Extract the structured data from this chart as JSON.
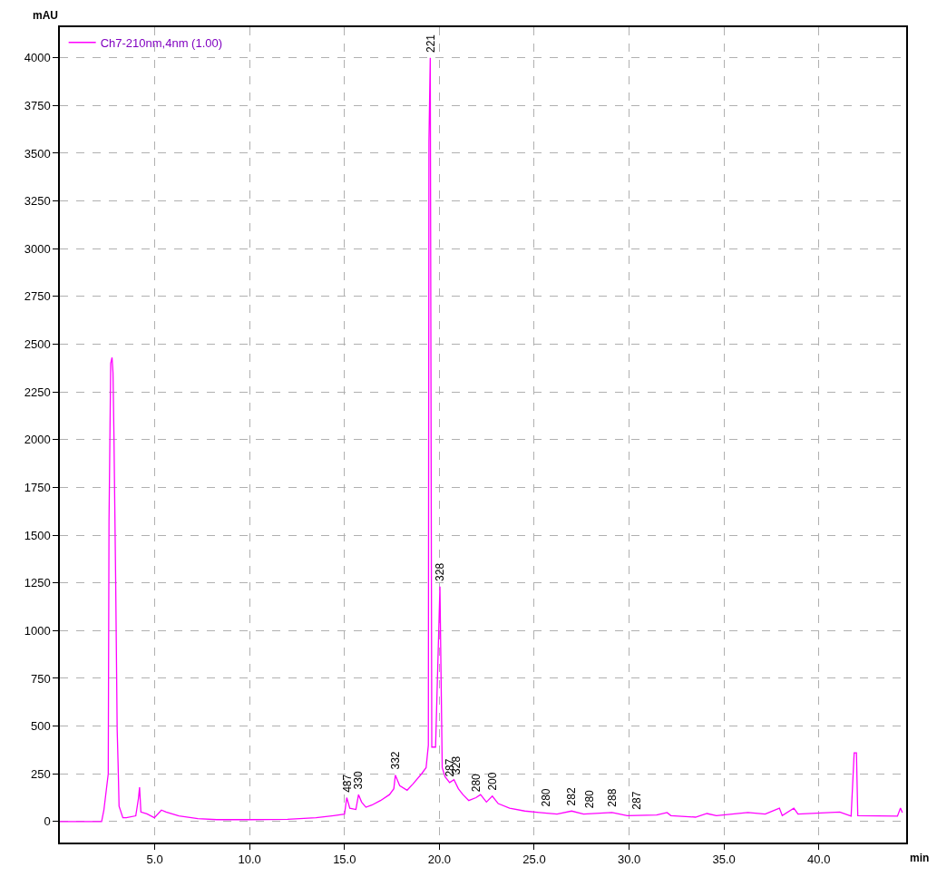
{
  "chart_data": {
    "type": "line",
    "xlabel": "min",
    "ylabel": "mAU",
    "legend": "top left",
    "grid": true,
    "marker": "none",
    "line_style": "solid",
    "xlim": [
      0,
      44.6
    ],
    "ylim": [
      -110,
      4160
    ],
    "xticks": [
      {
        "value": 5,
        "label": "5.0"
      },
      {
        "value": 10,
        "label": "10.0"
      },
      {
        "value": 15,
        "label": "15.0"
      },
      {
        "value": 20,
        "label": "20.0"
      },
      {
        "value": 25,
        "label": "25.0"
      },
      {
        "value": 30,
        "label": "30.0"
      },
      {
        "value": 35,
        "label": "35.0"
      },
      {
        "value": 40,
        "label": "40.0"
      }
    ],
    "yticks": [
      0,
      250,
      500,
      750,
      1000,
      1250,
      1500,
      1750,
      2000,
      2250,
      2500,
      2750,
      3000,
      3250,
      3500,
      3750,
      4000
    ],
    "series": [
      {
        "name": "Ch7-210nm,4nm (1.00)",
        "color": "#ff00ff",
        "x": [
          0,
          2.2,
          2.32,
          2.55,
          2.59,
          2.68,
          2.75,
          2.8,
          2.85,
          2.94,
          3.02,
          3.07,
          3.12,
          3.32,
          3.5,
          4.0,
          4.14,
          4.2,
          4.27,
          4.59,
          4.98,
          5.35,
          5.6,
          6.27,
          7.27,
          8.27,
          10.0,
          12.0,
          13.5,
          14.43,
          15.0,
          15.12,
          15.28,
          15.6,
          15.74,
          15.9,
          16.13,
          16.44,
          16.9,
          17.37,
          17.6,
          17.68,
          17.91,
          18.3,
          18.6,
          19.07,
          19.3,
          19.42,
          19.45,
          19.52,
          19.6,
          19.8,
          20.03,
          20.15,
          20.3,
          20.54,
          20.77,
          21.0,
          21.24,
          21.55,
          21.93,
          22.17,
          22.48,
          22.79,
          23.1,
          23.7,
          24.5,
          25.26,
          26.2,
          26.97,
          27.6,
          29.1,
          29.9,
          31.45,
          32.0,
          32.2,
          33.5,
          34.1,
          34.6,
          36.26,
          37.17,
          37.92,
          38.07,
          38.68,
          38.9,
          41.1,
          41.7,
          41.86,
          41.98,
          42.05,
          44.14,
          44.3,
          44.4
        ],
        "values": [
          0,
          0,
          60,
          250,
          1570,
          2400,
          2430,
          2350,
          2020,
          1270,
          480,
          300,
          80,
          20,
          20,
          30,
          120,
          180,
          50,
          40,
          20,
          60,
          50,
          30,
          15,
          10,
          10,
          12,
          20,
          31,
          39,
          125,
          70,
          63,
          141,
          102,
          75,
          86,
          110,
          141,
          172,
          243,
          188,
          164,
          196,
          251,
          282,
          400,
          3560,
          4000,
          390,
          390,
          1230,
          282,
          235,
          204,
          219,
          172,
          141,
          110,
          125,
          141,
          102,
          133,
          94,
          70,
          55,
          47,
          39,
          55,
          39,
          47,
          31,
          34,
          47,
          31,
          23,
          42,
          31,
          47,
          39,
          70,
          31,
          70,
          39,
          50,
          28,
          360,
          360,
          31,
          28,
          70,
          47
        ]
      }
    ],
    "annotations": [
      {
        "text": "487",
        "x": 15.12,
        "y": 125
      },
      {
        "text": "330",
        "x": 15.74,
        "y": 141
      },
      {
        "text": "332",
        "x": 17.68,
        "y": 243
      },
      {
        "text": "221",
        "x": 19.52,
        "y": 4000
      },
      {
        "text": "328",
        "x": 20.03,
        "y": 1230
      },
      {
        "text": "287",
        "x": 20.54,
        "y": 204
      },
      {
        "text": "328",
        "x": 20.9,
        "y": 219
      },
      {
        "text": "280",
        "x": 21.93,
        "y": 125
      },
      {
        "text": "200",
        "x": 22.79,
        "y": 133
      },
      {
        "text": "280",
        "x": 25.6,
        "y": 47
      },
      {
        "text": "282",
        "x": 26.97,
        "y": 55
      },
      {
        "text": "280",
        "x": 27.9,
        "y": 39
      },
      {
        "text": "288",
        "x": 29.1,
        "y": 47
      },
      {
        "text": "287",
        "x": 30.4,
        "y": 34
      }
    ]
  }
}
